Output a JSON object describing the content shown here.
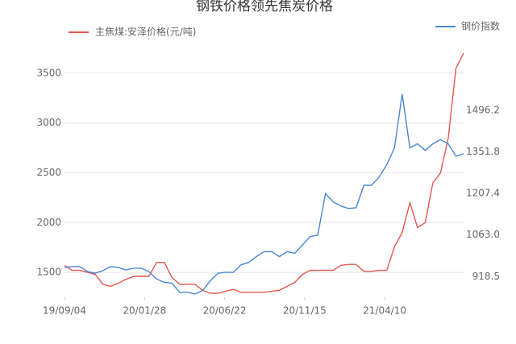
{
  "chart_data": {
    "type": "line",
    "title": "钢铁价格领先焦炭价格",
    "x": [
      "19/09/04",
      "19/09/18",
      "19/10/02",
      "19/10/16",
      "19/10/30",
      "19/11/13",
      "19/11/27",
      "19/12/11",
      "19/12/25",
      "20/01/08",
      "20/01/22",
      "20/02/05",
      "20/02/19",
      "20/03/04",
      "20/03/18",
      "20/04/01",
      "20/04/15",
      "20/04/29",
      "20/05/13",
      "20/05/27",
      "20/06/10",
      "20/06/24",
      "20/07/08",
      "20/07/22",
      "20/08/05",
      "20/08/19",
      "20/09/02",
      "20/09/16",
      "20/09/30",
      "20/10/14",
      "20/10/28",
      "20/11/11",
      "20/11/25",
      "20/12/09",
      "20/12/23",
      "21/01/06",
      "21/01/20",
      "21/02/03",
      "21/02/17",
      "21/03/03",
      "21/03/17",
      "21/03/31",
      "21/04/14",
      "21/04/28",
      "21/05/12",
      "21/05/26",
      "21/06/09",
      "21/06/23",
      "21/07/07",
      "21/07/21",
      "21/08/04",
      "21/08/18",
      "21/09/01"
    ],
    "xlim": [
      "19/09/04",
      "21/09/01"
    ],
    "xticks": [
      "19/09/04",
      "20/01/28",
      "20/06/22",
      "20/11/15",
      "21/04/10"
    ],
    "series": [
      {
        "name": "主焦煤:安泽价格(元/吨)",
        "color": "#e8574f",
        "axis": "y",
        "values": [
          1570,
          1520,
          1520,
          1500,
          1480,
          1380,
          1360,
          1390,
          1430,
          1460,
          1460,
          1460,
          1600,
          1600,
          1450,
          1380,
          1380,
          1380,
          1320,
          1290,
          1290,
          1310,
          1330,
          1300,
          1300,
          1300,
          1300,
          1310,
          1320,
          1360,
          1400,
          1480,
          1520,
          1520,
          1520,
          1520,
          1570,
          1580,
          1580,
          1510,
          1510,
          1520,
          1520,
          1760,
          1900,
          2200,
          1950,
          2000,
          2400,
          2500,
          2850,
          3550,
          3700
        ]
      },
      {
        "name": "钢价指数",
        "color": "#4a86d8",
        "axis": "y2",
        "values": [
          950.3,
          953.2,
          953.2,
          935.8,
          930.1,
          938.7,
          953.2,
          950.3,
          941.6,
          947.4,
          947.4,
          935.8,
          909.8,
          898.3,
          895.4,
          863.6,
          863.6,
          857.9,
          869.4,
          904.1,
          930.1,
          933.0,
          933.0,
          958.9,
          967.6,
          987.8,
          1005.1,
          1005.1,
          987.8,
          1005.1,
          999.4,
          1028.2,
          1057.1,
          1062.9,
          1207.3,
          1178.4,
          1164.0,
          1155.3,
          1158.2,
          1236.2,
          1236.2,
          1265.1,
          1308.4,
          1366.1,
          1553.8,
          1366.1,
          1380.6,
          1357.5,
          1380.6,
          1395.0,
          1380.6,
          1337.3,
          1345.9
        ]
      }
    ],
    "ylim": [
      1250,
      3750
    ],
    "yticks": [
      1500,
      2000,
      2500,
      3000,
      3500
    ],
    "y2lim": [
      846.3,
      1712.8
    ],
    "y2ticks": [
      918.5,
      {
        "value": 1063.0,
        "label": "1063.0"
      },
      1207.4,
      1351.8,
      1496.2
    ],
    "grid": true
  }
}
